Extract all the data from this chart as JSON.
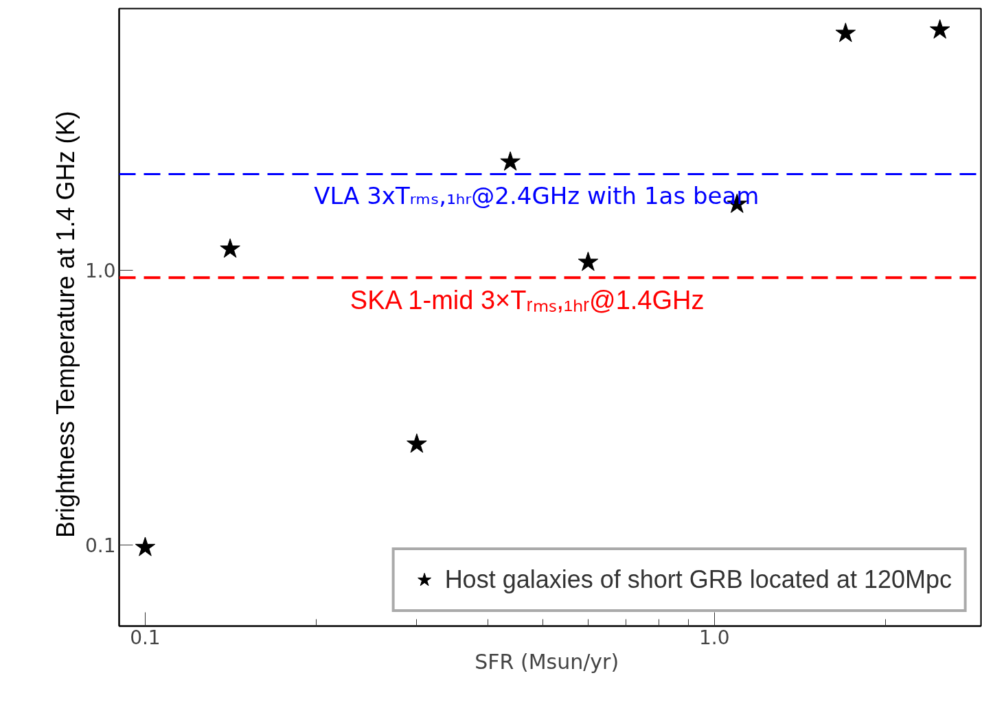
{
  "chart_data": {
    "type": "scatter",
    "xlabel": "SFR  (Msun/yr)",
    "ylabel": "Brightness Temperature  at  1.4 GHz (K)",
    "log": "xy",
    "xlim": [
      0.09,
      2.94
    ],
    "ylim": [
      0.0507,
      8.97
    ],
    "xticks": [
      0.1,
      {
        "value": 1,
        "label": "1.0"
      }
    ],
    "yticks": [
      0.1,
      {
        "value": 1,
        "label": "1.0"
      }
    ],
    "x": [
      0.1,
      0.141,
      0.3,
      0.438,
      0.6,
      1.096,
      1.7,
      2.49
    ],
    "series": [
      {
        "name": "Host galaxies of short GRB located at 120Mpc",
        "color": "#000000",
        "values": [
          0.098,
          1.195,
          0.233,
          2.48,
          1.07,
          1.74,
          7.29,
          7.5
        ]
      }
    ],
    "marker": "star",
    "legend": "bottom right",
    "ref_lines": [
      {
        "axis": "y",
        "value": 2.24,
        "label": "VLA 3xTᵣₘₛ,₁ₕᵣ@2.4GHz with 1as beam",
        "color": "#0000ff",
        "line_style": "dashed"
      },
      {
        "axis": "y",
        "value": 0.94,
        "label": "SKA 1-mid 3×Tᵣₘₛ,₁ₕᵣ@1.4GHz",
        "color": "#ff0000",
        "line_style": "dashed"
      }
    ]
  }
}
